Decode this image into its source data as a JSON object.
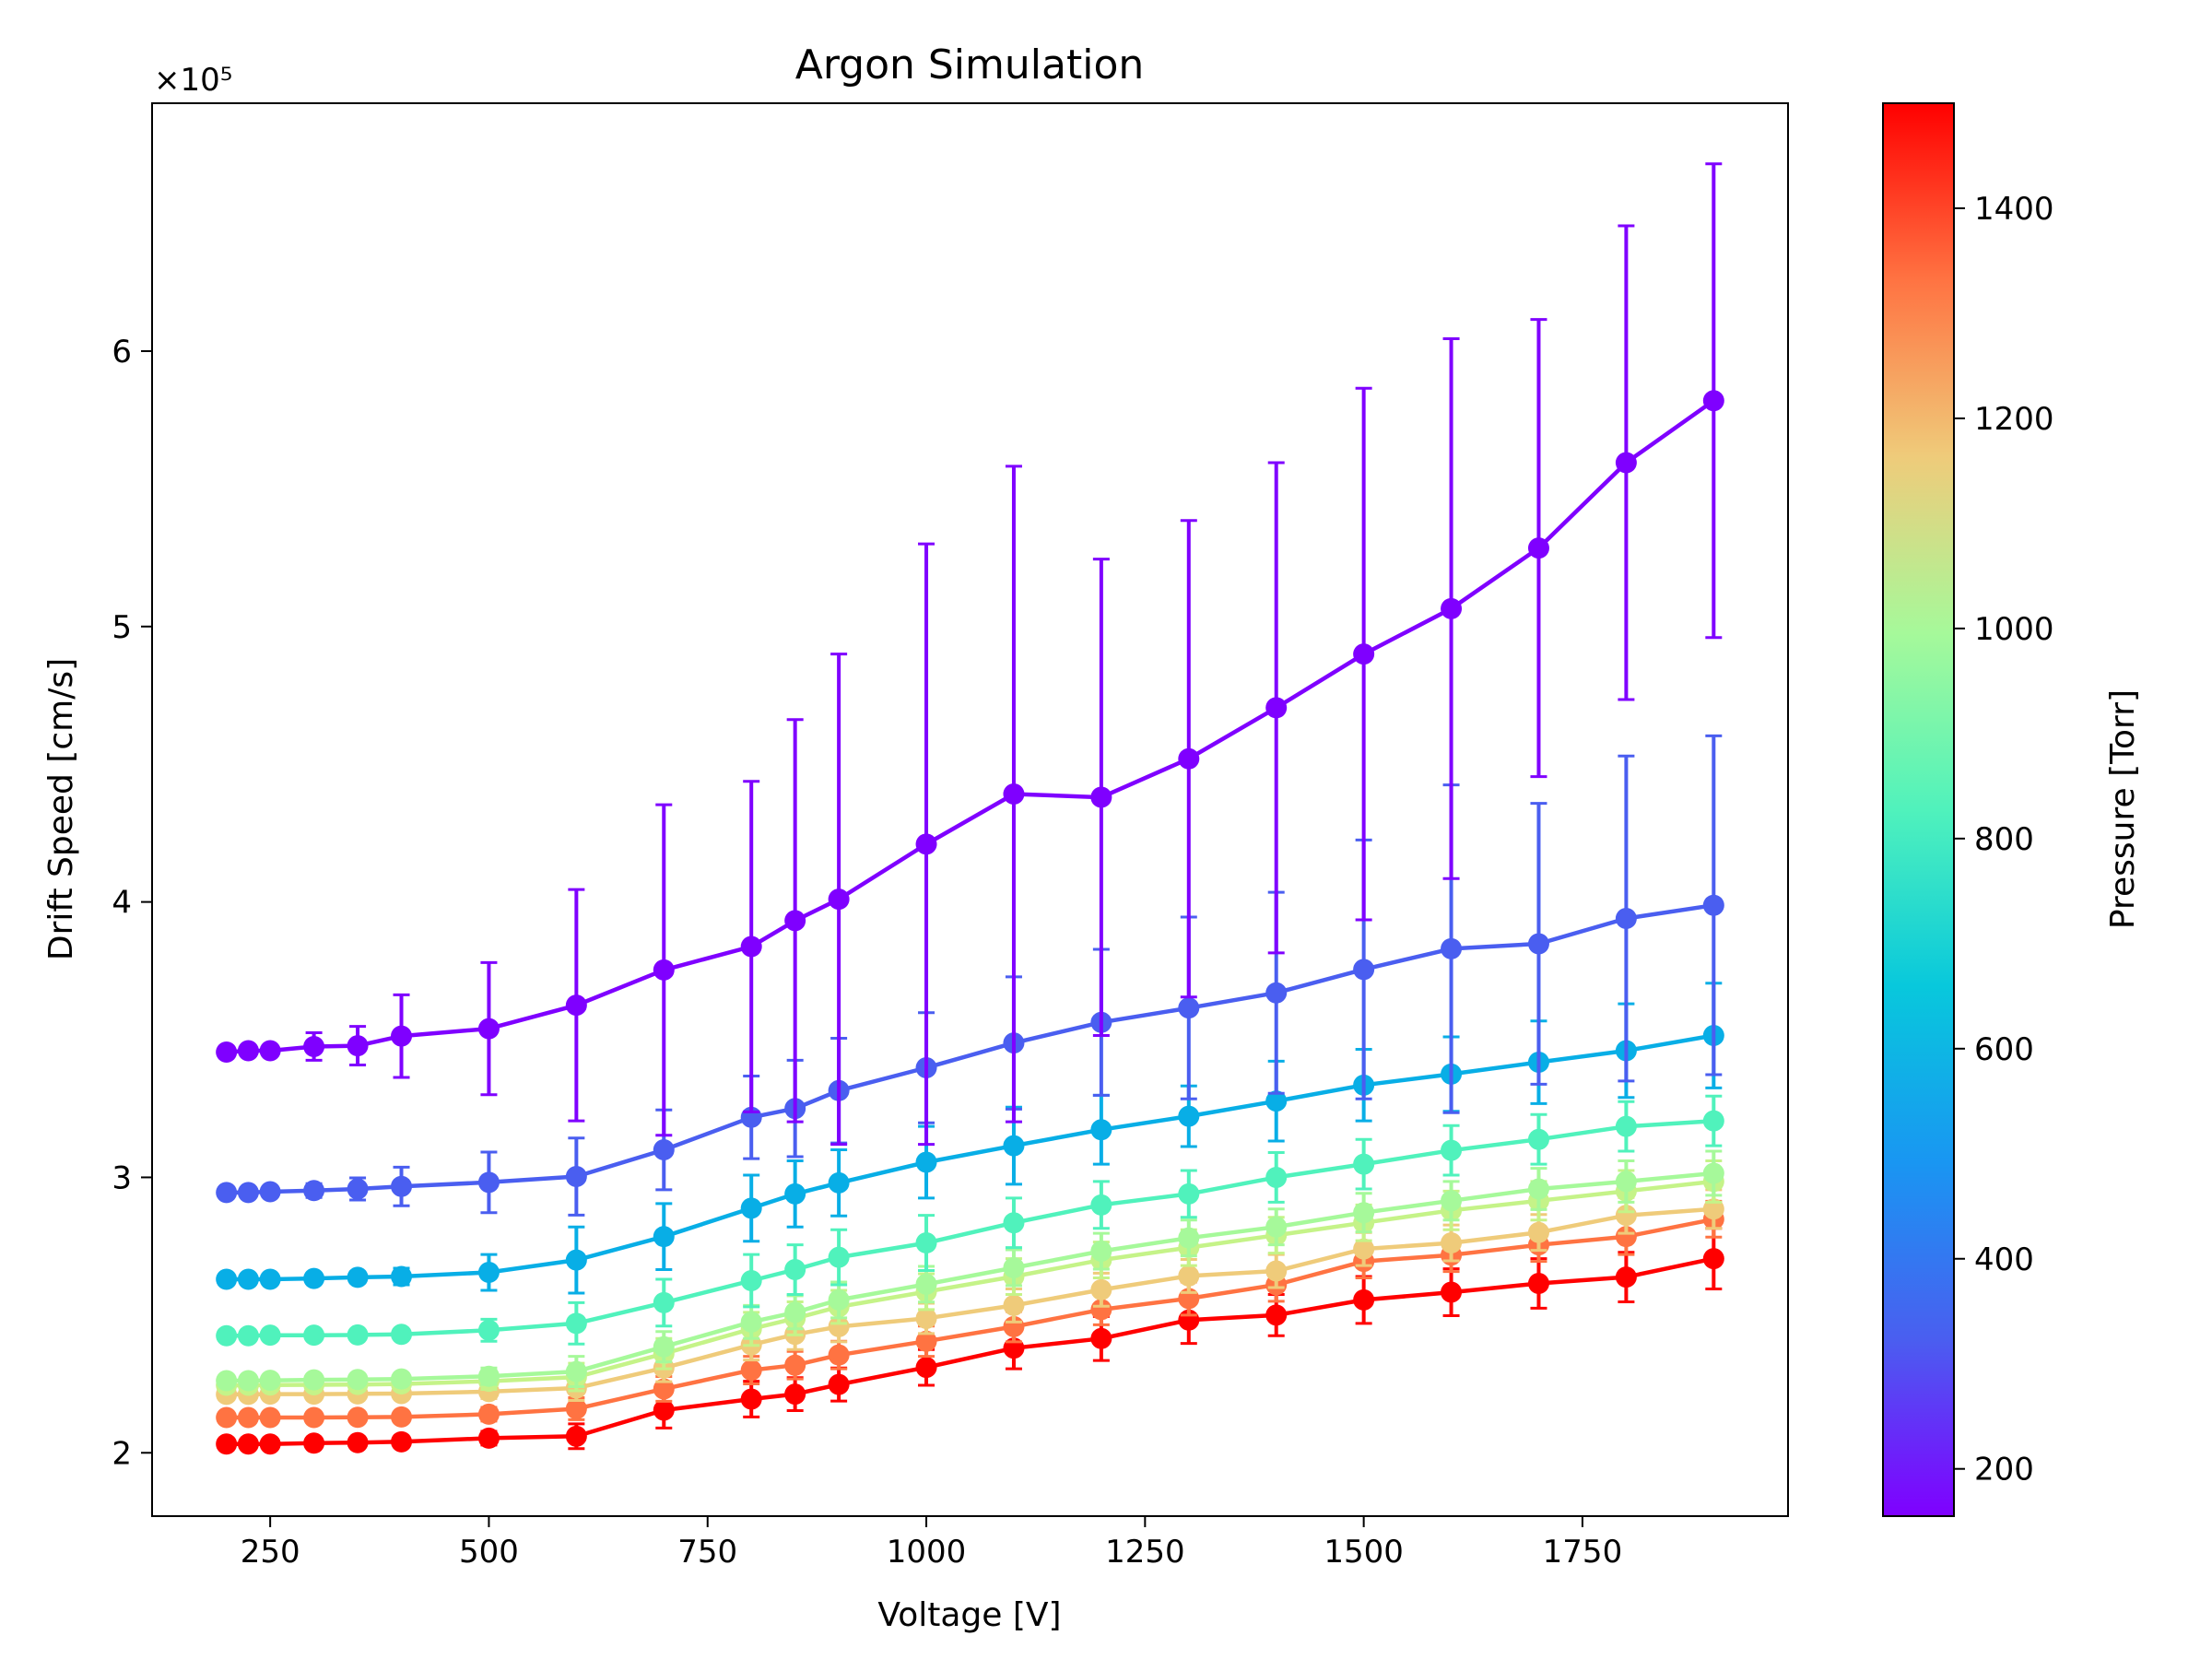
{
  "chart_data": {
    "type": "line",
    "title": "Argon Simulation",
    "xlabel": "Voltage [V]",
    "ylabel": "Drift Speed [cm/s]",
    "y_scale_label": "×10⁵",
    "xlim": [
      115,
      1985
    ],
    "ylim": [
      1.77,
      6.9
    ],
    "xticks": [
      250,
      500,
      750,
      1000,
      1250,
      1500,
      1750
    ],
    "xtick_labels": [
      "250",
      "500",
      "750",
      "1000",
      "1250",
      "1500",
      "1750"
    ],
    "yticks": [
      2,
      3,
      4,
      5,
      6
    ],
    "ytick_labels": [
      "2",
      "3",
      "4",
      "5",
      "6"
    ],
    "x": [
      200,
      225,
      250,
      300,
      350,
      400,
      500,
      600,
      700,
      800,
      850,
      900,
      1000,
      1100,
      1200,
      1300,
      1400,
      1500,
      1600,
      1700,
      1800,
      1900
    ],
    "grid": false,
    "markers": "circle",
    "error_bars": true,
    "colorbar": {
      "label": "Pressure [Torr]",
      "colormap": "rainbow",
      "range": [
        155,
        1500
      ],
      "ticks": [
        200,
        400,
        600,
        800,
        1000,
        1200,
        1400
      ],
      "tick_labels": [
        "200",
        "400",
        "600",
        "800",
        "1000",
        "1200",
        "1400"
      ]
    },
    "series": [
      {
        "pressure": 160,
        "color": "#7f00ff",
        "y": [
          3.455,
          3.46,
          3.46,
          3.475,
          3.478,
          3.513,
          3.54,
          3.625,
          3.753,
          3.838,
          3.932,
          4.01,
          4.21,
          4.392,
          4.38,
          4.52,
          4.705,
          4.9,
          5.065,
          5.285,
          5.595,
          5.82
        ],
        "err": [
          0.005,
          0.005,
          0.008,
          0.05,
          0.07,
          0.15,
          0.24,
          0.42,
          0.6,
          0.6,
          0.73,
          0.89,
          1.09,
          1.19,
          0.865,
          0.865,
          0.89,
          0.965,
          0.98,
          0.83,
          0.86,
          0.86
        ]
      },
      {
        "pressure": 300,
        "color": "#4a5ef0",
        "y": [
          2.945,
          2.945,
          2.948,
          2.952,
          2.958,
          2.967,
          2.982,
          3.003,
          3.1,
          3.218,
          3.25,
          3.315,
          3.398,
          3.488,
          3.563,
          3.615,
          3.67,
          3.755,
          3.83,
          3.848,
          3.94,
          3.988
        ],
        "err": [
          0.005,
          0.005,
          0.008,
          0.025,
          0.04,
          0.07,
          0.11,
          0.14,
          0.145,
          0.15,
          0.175,
          0.19,
          0.2,
          0.24,
          0.265,
          0.33,
          0.365,
          0.47,
          0.595,
          0.51,
          0.59,
          0.615
        ]
      },
      {
        "pressure": 450,
        "color": "#08aee6",
        "y": [
          2.63,
          2.63,
          2.63,
          2.633,
          2.637,
          2.64,
          2.655,
          2.7,
          2.785,
          2.888,
          2.94,
          2.98,
          3.055,
          3.115,
          3.173,
          3.222,
          3.277,
          3.335,
          3.375,
          3.418,
          3.46,
          3.515
        ],
        "err": [
          0.005,
          0.005,
          0.005,
          0.01,
          0.02,
          0.03,
          0.065,
          0.12,
          0.12,
          0.12,
          0.12,
          0.12,
          0.13,
          0.14,
          0.125,
          0.11,
          0.145,
          0.13,
          0.135,
          0.15,
          0.17,
          0.19
        ]
      },
      {
        "pressure": 700,
        "color": "#50f2bc",
        "y": [
          2.425,
          2.425,
          2.427,
          2.427,
          2.428,
          2.43,
          2.445,
          2.47,
          2.545,
          2.625,
          2.665,
          2.71,
          2.762,
          2.835,
          2.9,
          2.94,
          3.0,
          3.048,
          3.098,
          3.138,
          3.185,
          3.205
        ],
        "err": [
          0.005,
          0.005,
          0.005,
          0.008,
          0.01,
          0.015,
          0.04,
          0.075,
          0.085,
          0.095,
          0.09,
          0.1,
          0.1,
          0.09,
          0.085,
          0.085,
          0.09,
          0.09,
          0.09,
          0.09,
          0.09,
          0.09
        ]
      },
      {
        "pressure": 900,
        "color": "#a6f99a",
        "y": [
          2.262,
          2.262,
          2.263,
          2.265,
          2.266,
          2.268,
          2.278,
          2.295,
          2.385,
          2.475,
          2.51,
          2.555,
          2.612,
          2.672,
          2.732,
          2.78,
          2.82,
          2.872,
          2.915,
          2.958,
          2.985,
          3.015
        ],
        "err": [
          0.005,
          0.005,
          0.005,
          0.008,
          0.01,
          0.012,
          0.03,
          0.055,
          0.055,
          0.06,
          0.06,
          0.065,
          0.065,
          0.065,
          0.065,
          0.065,
          0.065,
          0.07,
          0.07,
          0.075,
          0.075,
          0.08
        ]
      },
      {
        "pressure": 1000,
        "color": "#c5f388",
        "y": [
          2.245,
          2.245,
          2.246,
          2.247,
          2.248,
          2.25,
          2.26,
          2.275,
          2.36,
          2.45,
          2.488,
          2.53,
          2.585,
          2.64,
          2.7,
          2.745,
          2.79,
          2.835,
          2.88,
          2.915,
          2.95,
          2.985
        ],
        "err": [
          0.005,
          0.005,
          0.005,
          0.008,
          0.01,
          0.012,
          0.03,
          0.05,
          0.055,
          0.06,
          0.06,
          0.06,
          0.065,
          0.065,
          0.065,
          0.065,
          0.065,
          0.065,
          0.07,
          0.07,
          0.075,
          0.075
        ]
      },
      {
        "pressure": 1150,
        "color": "#efcb7a",
        "y": [
          2.212,
          2.212,
          2.213,
          2.213,
          2.214,
          2.215,
          2.222,
          2.235,
          2.308,
          2.392,
          2.43,
          2.458,
          2.488,
          2.535,
          2.592,
          2.642,
          2.66,
          2.74,
          2.762,
          2.8,
          2.862,
          2.885
        ],
        "err": [
          0.005,
          0.005,
          0.005,
          0.008,
          0.01,
          0.012,
          0.025,
          0.045,
          0.05,
          0.055,
          0.055,
          0.055,
          0.055,
          0.06,
          0.06,
          0.06,
          0.06,
          0.06,
          0.065,
          0.065,
          0.065,
          0.07
        ]
      },
      {
        "pressure": 1300,
        "color": "#ff7342",
        "y": [
          2.128,
          2.128,
          2.128,
          2.128,
          2.129,
          2.13,
          2.14,
          2.16,
          2.232,
          2.3,
          2.318,
          2.355,
          2.405,
          2.458,
          2.52,
          2.56,
          2.61,
          2.695,
          2.718,
          2.755,
          2.785,
          2.848
        ],
        "err": [
          0.005,
          0.005,
          0.005,
          0.008,
          0.01,
          0.012,
          0.025,
          0.04,
          0.045,
          0.05,
          0.05,
          0.05,
          0.055,
          0.055,
          0.055,
          0.06,
          0.06,
          0.06,
          0.06,
          0.06,
          0.065,
          0.065
        ]
      },
      {
        "pressure": 1500,
        "color": "#ff0000",
        "y": [
          2.032,
          2.032,
          2.032,
          2.035,
          2.037,
          2.04,
          2.053,
          2.06,
          2.155,
          2.195,
          2.213,
          2.248,
          2.31,
          2.38,
          2.415,
          2.482,
          2.5,
          2.555,
          2.583,
          2.615,
          2.638,
          2.705
        ],
        "err": [
          0.008,
          0.008,
          0.008,
          0.01,
          0.015,
          0.02,
          0.025,
          0.045,
          0.065,
          0.065,
          0.06,
          0.06,
          0.065,
          0.075,
          0.08,
          0.085,
          0.075,
          0.085,
          0.085,
          0.09,
          0.09,
          0.11
        ]
      }
    ]
  }
}
